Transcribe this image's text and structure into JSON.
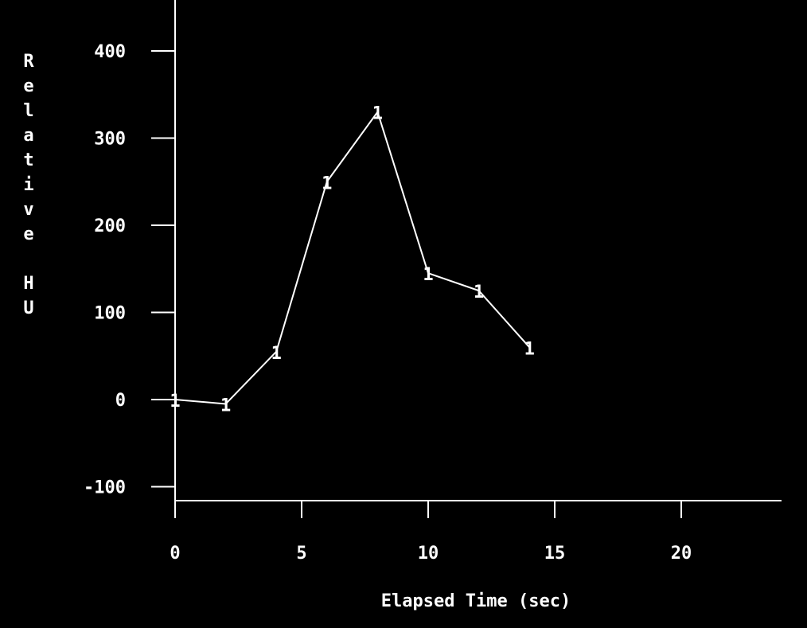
{
  "chart_data": {
    "type": "line",
    "title": "",
    "xlabel": "Elapsed Time (sec)",
    "ylabel": "Relative HU",
    "xlim": [
      0,
      24
    ],
    "ylim": [
      -100,
      440
    ],
    "x_ticks": [
      0,
      5,
      10,
      15,
      20
    ],
    "x_tick_labels": [
      "0",
      "5",
      "10",
      "15",
      "20"
    ],
    "y_ticks": [
      -100,
      0,
      100,
      200,
      300,
      400
    ],
    "y_tick_labels": [
      "-100",
      "0",
      "100",
      "200",
      "300",
      "400"
    ],
    "grid": false,
    "legend": "none",
    "series": [
      {
        "marker": "1",
        "x": [
          0,
          2,
          4,
          6,
          8,
          10,
          12,
          14
        ],
        "y": [
          0,
          -5,
          55,
          250,
          330,
          145,
          125,
          60
        ]
      }
    ],
    "colors": {
      "background": "#000000",
      "foreground": "#ffffff"
    }
  }
}
